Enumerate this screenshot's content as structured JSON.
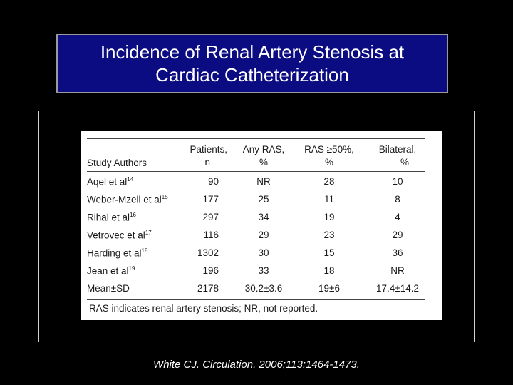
{
  "slide": {
    "title_line1": "Incidence of Renal Artery Stenosis at",
    "title_line2": "Cardiac Catheterization",
    "citation": "White CJ. Circulation. 2006;113:1464-1473."
  },
  "table": {
    "headers": {
      "authors": "Study Authors",
      "patients_l1": "Patients,",
      "patients_l2": "n",
      "anyras_l1": "Any RAS,",
      "anyras_l2": "%",
      "ras50_l1": "RAS ≥50%,",
      "ras50_l2": "%",
      "bilateral_l1": "Bilateral,",
      "bilateral_l2": "%"
    },
    "rows": [
      {
        "author": "Aqel et al",
        "ref": "14",
        "patients": "90",
        "any": "NR",
        "ras50": "28",
        "bilateral": "10"
      },
      {
        "author": "Weber-Mzell et al",
        "ref": "15",
        "patients": "177",
        "any": "25",
        "ras50": "11",
        "bilateral": "8"
      },
      {
        "author": "Rihal et al",
        "ref": "16",
        "patients": "297",
        "any": "34",
        "ras50": "19",
        "bilateral": "4"
      },
      {
        "author": "Vetrovec et al",
        "ref": "17",
        "patients": "116",
        "any": "29",
        "ras50": "23",
        "bilateral": "29"
      },
      {
        "author": "Harding et al",
        "ref": "18",
        "patients": "1302",
        "any": "30",
        "ras50": "15",
        "bilateral": "36"
      },
      {
        "author": "Jean et al",
        "ref": "19",
        "patients": "196",
        "any": "33",
        "ras50": "18",
        "bilateral": "NR"
      },
      {
        "author": "Mean±SD",
        "ref": "",
        "patients": "2178",
        "any": "30.2±3.6",
        "ras50": "19±6",
        "bilateral": "17.4±14.2"
      }
    ],
    "footnote": "RAS indicates renal artery stenosis; NR, not reported."
  }
}
